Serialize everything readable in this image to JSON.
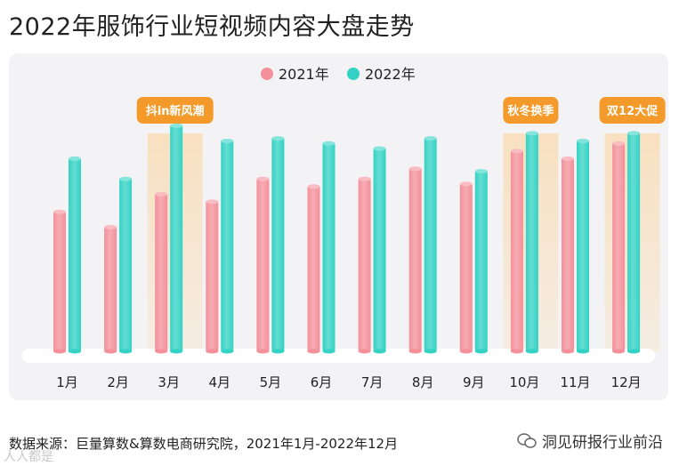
{
  "page": {
    "title": "2022年服饰行业短视频内容大盘走势",
    "source": "数据来源：巨量算数&算数电商研究院，2021年1月-2022年12月",
    "brand": "洞见研报行业前沿",
    "watermark": "人人都是"
  },
  "colors": {
    "series_2021": "#f3909a",
    "series_2022": "#33d2c4",
    "highlight": "#f8e0c0",
    "callout": "#f39a2a"
  },
  "chart_data": {
    "type": "bar",
    "title": "2022年服饰行业短视频内容大盘走势",
    "categories": [
      "1月",
      "2月",
      "3月",
      "4月",
      "5月",
      "6月",
      "7月",
      "8月",
      "9月",
      "10月",
      "11月",
      "12月"
    ],
    "series": [
      {
        "name": "2021年",
        "values": [
          55,
          49,
          62,
          59,
          68,
          65,
          68,
          72,
          66,
          79,
          76,
          82
        ]
      },
      {
        "name": "2022年",
        "values": [
          76,
          68,
          89,
          83,
          84,
          82,
          80,
          84,
          71,
          86,
          83,
          86
        ]
      }
    ],
    "ylim": [
      0,
      100
    ],
    "xlabel": "",
    "ylabel": "",
    "grid": false,
    "legend": "top-center",
    "annotations": [
      {
        "label": "抖in新风潮",
        "category": "3月"
      },
      {
        "label": "秋冬换季",
        "category": "10月"
      },
      {
        "label": "双12大促",
        "category": "12月"
      }
    ]
  }
}
